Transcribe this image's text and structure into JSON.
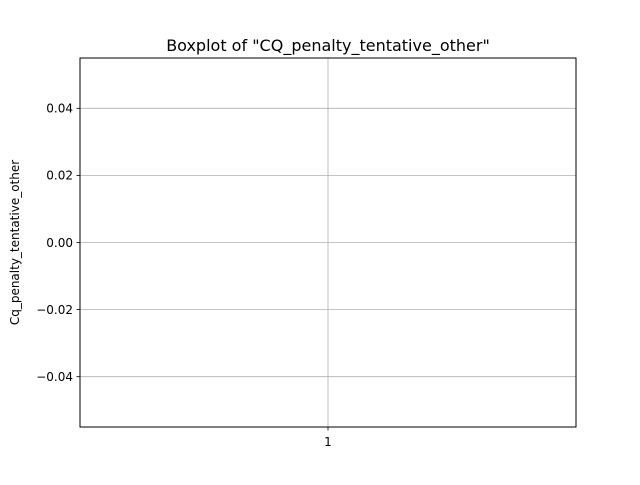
{
  "chart_data": {
    "type": "box",
    "title": "Boxplot of \"CQ_penalty_tentative_other\"",
    "xlabel": "",
    "ylabel": "Cq_penalty_tentative_other",
    "categories": [
      "1"
    ],
    "series": [
      {
        "values": []
      }
    ],
    "ylim": [
      -0.055,
      0.055
    ],
    "yticks": [
      -0.04,
      -0.02,
      0.0,
      0.02,
      0.04
    ],
    "ytick_labels": [
      "−0.04",
      "−0.02",
      "0.00",
      "0.02",
      "0.04"
    ],
    "grid": true,
    "colors": {
      "grid": "#b0b0b0",
      "axes": "#000000",
      "background": "#ffffff"
    }
  }
}
